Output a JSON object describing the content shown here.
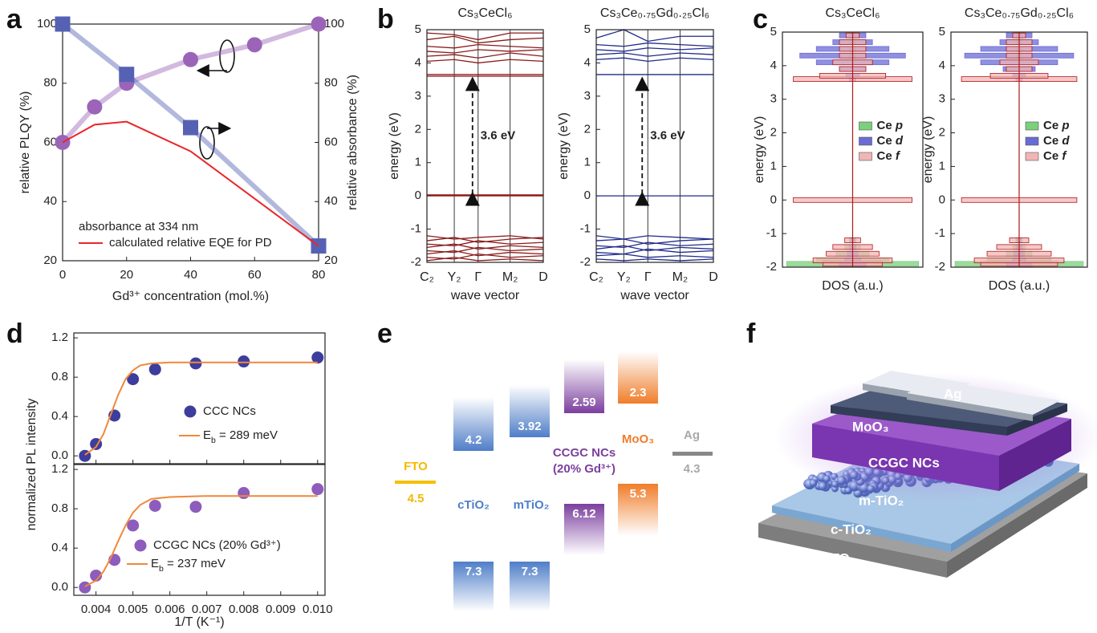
{
  "panel_labels": [
    "a",
    "b",
    "c",
    "d",
    "e",
    "f"
  ],
  "chart_data": [
    {
      "type": "line",
      "xlabel": "Gd³⁺ concentration (mol.%)",
      "ylabel": "relative PLQY (%)",
      "y2label": "relative absorbance (%)",
      "xlim": [
        0,
        80
      ],
      "xticks": [
        0,
        20,
        40,
        60,
        80
      ],
      "ylim": [
        20,
        100
      ],
      "yticks": [
        20,
        40,
        60,
        80,
        100
      ],
      "y2lim": [
        20,
        100
      ],
      "y2ticks": [
        20,
        40,
        60,
        80,
        100
      ],
      "legend_title": "absorbance at 334 nm",
      "series": [
        {
          "marker": "circle",
          "color": "#9b64b8",
          "x": [
            0,
            10,
            20,
            40,
            60,
            80
          ],
          "values": [
            60,
            72,
            80,
            88,
            93,
            100
          ]
        },
        {
          "marker": "square",
          "color": "#5562b4",
          "axis": "y2",
          "x": [
            0,
            20,
            40,
            80
          ],
          "values": [
            100,
            83,
            65,
            25
          ]
        },
        {
          "name": "calculated relative EQE for PD",
          "marker": "none",
          "color": "#e8262a",
          "x": [
            0,
            10,
            20,
            40,
            80
          ],
          "values": [
            60,
            66,
            67,
            57,
            25
          ]
        }
      ]
    },
    {
      "type": "bands",
      "title": "Cs₃CeCl₆",
      "xlabel": "wave vector",
      "ylabel": "energy (eV)",
      "categories": [
        "C₂",
        "Y₂",
        "Γ",
        "M₂",
        "D"
      ],
      "ylim": [
        -2,
        5
      ],
      "yticks": [
        -2,
        -1,
        0,
        1,
        2,
        3,
        4,
        5
      ],
      "color": "#8b1a1a",
      "gap": {
        "label": "3.6 eV",
        "from": 0,
        "to": 3.6
      },
      "bands": [
        [
          -1.2,
          -1.3,
          -1.25,
          -1.2,
          -1.3
        ],
        [
          -1.35,
          -1.25,
          -1.4,
          -1.3,
          -1.25
        ],
        [
          -1.45,
          -1.5,
          -1.35,
          -1.45,
          -1.4
        ],
        [
          -1.55,
          -1.45,
          -1.6,
          -1.5,
          -1.55
        ],
        [
          -1.65,
          -1.7,
          -1.55,
          -1.65,
          -1.6
        ],
        [
          -1.75,
          -1.65,
          -1.8,
          -1.7,
          -1.75
        ],
        [
          -1.85,
          -1.9,
          -1.75,
          -1.85,
          -1.8
        ],
        [
          -1.95,
          -1.85,
          -1.95,
          -1.9,
          -1.95
        ],
        [
          0,
          0,
          0,
          0,
          0
        ],
        [
          0.03,
          0.03,
          0.03,
          0.03,
          0.03
        ],
        [
          3.6,
          3.6,
          3.6,
          3.6,
          3.6
        ],
        [
          3.65,
          3.65,
          3.65,
          3.65,
          3.65
        ],
        [
          4.05,
          4.1,
          4.0,
          4.1,
          4.05
        ],
        [
          4.2,
          4.25,
          4.15,
          4.3,
          4.2
        ],
        [
          4.35,
          4.3,
          4.4,
          4.35,
          4.4
        ],
        [
          4.5,
          4.45,
          4.55,
          4.5,
          4.45
        ],
        [
          4.7,
          4.8,
          4.6,
          4.7,
          4.75
        ],
        [
          4.9,
          4.85,
          4.7,
          4.9,
          4.9
        ]
      ]
    },
    {
      "type": "bands",
      "title": "Cs₃Ce₀.₇₅Gd₀.₂₅Cl₆",
      "xlabel": "wave vector",
      "ylabel": "energy (eV)",
      "categories": [
        "C₂",
        "Y₂",
        "Γ",
        "M₂",
        "D"
      ],
      "ylim": [
        -2,
        5
      ],
      "yticks": [
        -2,
        -1,
        0,
        1,
        2,
        3,
        4,
        5
      ],
      "color": "#1f2a8a",
      "gap": {
        "label": "3.6 eV",
        "from": 0,
        "to": 3.6
      },
      "bands": [
        [
          -1.2,
          -1.3,
          -1.2,
          -1.25,
          -1.3
        ],
        [
          -1.35,
          -1.3,
          -1.45,
          -1.35,
          -1.3
        ],
        [
          -1.5,
          -1.55,
          -1.4,
          -1.5,
          -1.45
        ],
        [
          -1.6,
          -1.5,
          -1.65,
          -1.55,
          -1.6
        ],
        [
          -1.7,
          -1.75,
          -1.6,
          -1.7,
          -1.65
        ],
        [
          -1.8,
          -1.75,
          -1.85,
          -1.8,
          -1.85
        ],
        [
          -1.9,
          -1.95,
          -1.9,
          -1.95,
          -1.9
        ],
        [
          0,
          0,
          0,
          0,
          0
        ],
        [
          3.65,
          3.65,
          3.65,
          3.65,
          3.65
        ],
        [
          4.1,
          4.15,
          4.05,
          4.15,
          4.1
        ],
        [
          4.25,
          4.3,
          4.2,
          4.3,
          4.25
        ],
        [
          4.4,
          4.35,
          4.45,
          4.4,
          4.45
        ],
        [
          4.55,
          4.5,
          4.6,
          4.55,
          4.5
        ],
        [
          4.75,
          5.0,
          4.65,
          4.8,
          4.8
        ]
      ]
    },
    {
      "type": "dos",
      "title": "Cs₃CeCl₆",
      "xlabel": "DOS (a.u.)",
      "ylabel": "energy (eV)",
      "ylim": [
        -2,
        5
      ],
      "yticks": [
        -2,
        -1,
        0,
        1,
        2,
        3,
        4,
        5
      ],
      "xlim": [
        0,
        1
      ],
      "energies": [
        -1.9,
        -1.8,
        -1.6,
        -1.4,
        -1.2,
        0,
        3.6,
        3.7,
        3.9,
        4.1,
        4.3,
        4.5,
        4.7,
        4.9
      ],
      "series": [
        {
          "name": "Ce p",
          "color": "#7ccf7c",
          "values": [
            1.0,
            0.55,
            0.25,
            0.12,
            0.05,
            0,
            0,
            0,
            0,
            0,
            0.05,
            0.05,
            0.05,
            0.05
          ]
        },
        {
          "name": "Ce d",
          "color": "#6b6bd6",
          "values": [
            0.2,
            0.12,
            0.08,
            0.05,
            0.03,
            0,
            0.05,
            0.1,
            0.2,
            0.55,
            0.8,
            0.55,
            0.3,
            0.2
          ]
        },
        {
          "name": "Ce f",
          "color": "#f2b5b5",
          "values": [
            0.45,
            0.6,
            0.4,
            0.3,
            0.12,
            0.9,
            0.9,
            0.5,
            0.2,
            0.3,
            0.2,
            0.2,
            0.2,
            0.1
          ]
        }
      ]
    },
    {
      "type": "dos",
      "title": "Cs₃Ce₀.₇₅Gd₀.₂₅Cl₆",
      "xlabel": "DOS (a.u.)",
      "ylabel": "energy (eV)",
      "ylim": [
        -2,
        5
      ],
      "yticks": [
        -2,
        -1,
        0,
        1,
        2,
        3,
        4,
        5
      ],
      "xlim": [
        0,
        1
      ],
      "energies": [
        -1.9,
        -1.8,
        -1.6,
        -1.4,
        -1.2,
        0,
        3.6,
        3.7,
        3.9,
        4.1,
        4.3,
        4.5,
        4.7,
        4.9
      ],
      "series": [
        {
          "name": "Ce p",
          "color": "#7ccf7c",
          "values": [
            1.0,
            0.5,
            0.2,
            0.1,
            0.05,
            0,
            0,
            0,
            0,
            0,
            0.05,
            0.05,
            0.05,
            0.05
          ]
        },
        {
          "name": "Ce d",
          "color": "#6b6bd6",
          "values": [
            0.2,
            0.1,
            0.08,
            0.05,
            0.03,
            0,
            0.05,
            0.1,
            0.25,
            0.6,
            0.85,
            0.6,
            0.3,
            0.2
          ]
        },
        {
          "name": "Ce f",
          "color": "#f2b5b5",
          "values": [
            0.6,
            0.7,
            0.5,
            0.35,
            0.15,
            0.9,
            0.9,
            0.45,
            0.2,
            0.3,
            0.2,
            0.2,
            0.2,
            0.1
          ]
        }
      ]
    },
    {
      "type": "scatter",
      "ylabel": "normalized PL intensity",
      "xlim": [
        0.0034,
        0.0102
      ],
      "xticks": [
        0.004,
        0.005,
        0.006,
        0.007,
        0.008,
        0.009,
        0.01
      ],
      "ylim": [
        -0.08,
        1.25
      ],
      "yticks": [
        {
          "value": 0,
          "label": "0.0"
        },
        0.4,
        0.8,
        1.2
      ],
      "series": [
        {
          "name": "CCC NCs",
          "marker": "circle",
          "color": "#3d3d9e",
          "x": [
            0.0037,
            0.004,
            0.0045,
            0.005,
            0.0056,
            0.0067,
            0.008,
            0.01
          ],
          "values": [
            0,
            0.12,
            0.41,
            0.78,
            0.88,
            0.94,
            0.96,
            1.0
          ]
        },
        {
          "name": "Eb = 289 meV",
          "marker": "none",
          "color": "#f0883a",
          "x": [
            0.0037,
            0.004,
            0.0042,
            0.0044,
            0.0046,
            0.0048,
            0.005,
            0.0052,
            0.0055,
            0.006,
            0.007,
            0.008,
            0.01
          ],
          "values": [
            0.01,
            0.09,
            0.22,
            0.42,
            0.62,
            0.78,
            0.87,
            0.92,
            0.94,
            0.95,
            0.95,
            0.95,
            0.95
          ]
        }
      ]
    },
    {
      "type": "scatter",
      "xlabel": "1/T (K⁻¹)",
      "xlim": [
        0.0034,
        0.0102
      ],
      "xticks": [
        0.004,
        0.005,
        0.006,
        0.007,
        0.008,
        0.009,
        {
          "value": 0.01,
          "label": "0.010"
        }
      ],
      "ylim": [
        -0.08,
        1.25
      ],
      "yticks": [
        {
          "value": 0,
          "label": "0.0"
        },
        0.4,
        0.8,
        1.2
      ],
      "series": [
        {
          "name": "CCGC NCs (20% Gd³⁺)",
          "marker": "circle",
          "color": "#8d5cbc",
          "x": [
            0.0037,
            0.004,
            0.0045,
            0.005,
            0.0056,
            0.0067,
            0.008,
            0.01
          ],
          "values": [
            0,
            0.12,
            0.28,
            0.63,
            0.83,
            0.82,
            0.96,
            1.0
          ]
        },
        {
          "name": "Eb = 237 meV",
          "marker": "none",
          "color": "#f0883a",
          "x": [
            0.0037,
            0.004,
            0.0042,
            0.0044,
            0.0046,
            0.0048,
            0.005,
            0.0052,
            0.0055,
            0.006,
            0.007,
            0.008,
            0.01
          ],
          "values": [
            0.01,
            0.07,
            0.16,
            0.3,
            0.47,
            0.63,
            0.76,
            0.84,
            0.9,
            0.92,
            0.93,
            0.93,
            0.93
          ]
        }
      ]
    }
  ],
  "energy_diagram": {
    "materials": [
      {
        "name": "FTO",
        "levels": [
          4.5
        ]
      },
      {
        "name": "cTiO₂",
        "levels": [
          4.2,
          7.3
        ]
      },
      {
        "name": "mTiO₂",
        "levels": [
          3.92,
          7.3
        ]
      },
      {
        "name": "CCGC NCs",
        "subtitle": "(20% Gd³⁺)",
        "levels": [
          2.59,
          6.12
        ]
      },
      {
        "name": "MoO₃",
        "levels": [
          2.3,
          5.3
        ]
      },
      {
        "name": "Ag",
        "levels": [
          4.3
        ]
      }
    ]
  },
  "device": {
    "layers": [
      "Ag",
      "MoO₃",
      "CCGC NCs",
      "m-TiO₂",
      "c-TiO₂",
      "FTO"
    ]
  }
}
